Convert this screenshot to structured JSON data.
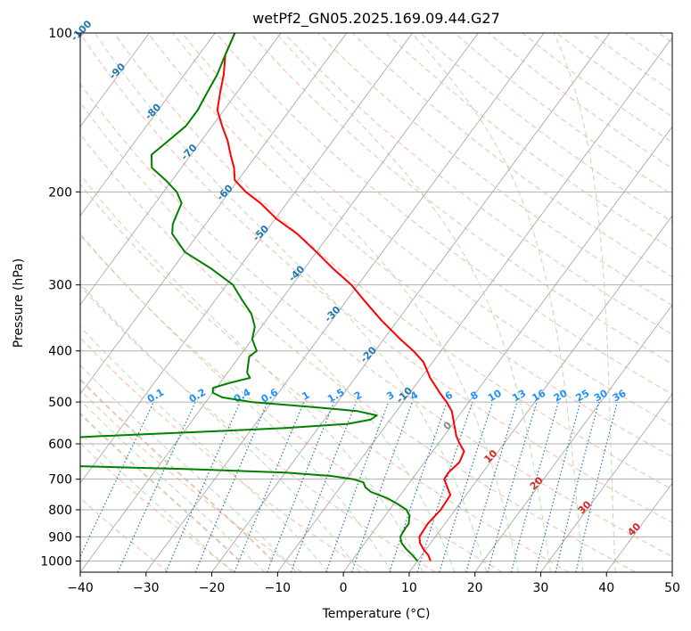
{
  "chart_data": {
    "type": "skewt",
    "title": "wetPf2_GN05.2025.169.09.44.G27",
    "xlabel": "Temperature (°C)",
    "ylabel": "Pressure (hPa)",
    "xlim": [
      -40,
      50
    ],
    "ylim": [
      1050,
      100
    ],
    "x_ticks": [
      -40,
      -30,
      -20,
      -10,
      0,
      10,
      20,
      30,
      40,
      50
    ],
    "y_ticks": [
      100,
      200,
      300,
      400,
      500,
      600,
      700,
      800,
      900,
      1000
    ],
    "grid": true,
    "colors": {
      "temperature": "#ff0000",
      "dewpoint": "#008000",
      "isotherms": "#888888",
      "dry_adiabats": "#f4a582",
      "moist_adiabats": "#a1d99b",
      "mixing_ratio": "#1f78b4",
      "dendritic": "#d2b48c"
    },
    "series": [
      {
        "name": "Temperature",
        "pressure": [
          1000,
          975,
          950,
          925,
          900,
          850,
          800,
          750,
          720,
          700,
          680,
          650,
          620,
          600,
          580,
          550,
          520,
          500,
          480,
          450,
          420,
          400,
          380,
          350,
          320,
          300,
          280,
          260,
          240,
          225,
          210,
          200,
          190,
          180,
          170,
          160,
          150,
          140,
          130,
          120,
          110,
          100
        ],
        "temperature": [
          12.0,
          11.0,
          9.6,
          8.4,
          7.6,
          7.4,
          7.8,
          7.6,
          6.0,
          4.9,
          4.8,
          5.3,
          4.8,
          3.3,
          1.9,
          0.2,
          -1.6,
          -3.4,
          -5.5,
          -8.6,
          -11.4,
          -14.2,
          -17.5,
          -22.5,
          -27.5,
          -31.0,
          -35.5,
          -40.0,
          -45.0,
          -49.8,
          -54.0,
          -57.5,
          -60.5,
          -62.0,
          -64.0,
          -66.0,
          -68.5,
          -71.0,
          -72.5,
          -74.0,
          -76.0,
          -77.0
        ]
      },
      {
        "name": "Dewpoint",
        "pressure": [
          1000,
          975,
          950,
          925,
          900,
          870,
          850,
          820,
          800,
          780,
          760,
          740,
          725,
          710,
          700,
          690,
          680,
          670,
          660,
          650,
          640,
          630,
          620,
          610,
          600,
          590,
          580,
          570,
          560,
          550,
          540,
          530,
          520,
          510,
          500,
          490,
          480,
          470,
          460,
          450,
          440,
          430,
          420,
          410,
          400,
          390,
          380,
          360,
          340,
          320,
          300,
          280,
          260,
          240,
          230,
          220,
          210,
          200,
          190,
          180,
          170,
          160,
          150,
          140,
          130,
          120,
          110,
          100
        ],
        "temperature": [
          10.0,
          8.6,
          7.0,
          5.6,
          4.7,
          4.5,
          4.5,
          3.7,
          2.6,
          0.6,
          -1.7,
          -4.8,
          -6.2,
          -7.0,
          -8.9,
          -12.7,
          -20.0,
          -35.0,
          -55.0,
          -70.0,
          -76.0,
          -79.0,
          -72.0,
          -60.0,
          -64.0,
          -63.0,
          -52.0,
          -38.0,
          -25.0,
          -16.0,
          -13.0,
          -12.5,
          -16.0,
          -24.0,
          -33.0,
          -38.0,
          -40.0,
          -40.5,
          -38.5,
          -36.0,
          -37.0,
          -37.5,
          -38.0,
          -38.5,
          -38.0,
          -39.0,
          -40.0,
          -41.0,
          -43.0,
          -46.0,
          -49.0,
          -54.0,
          -60.0,
          -64.0,
          -65.0,
          -65.5,
          -66.0,
          -68.0,
          -71.0,
          -74.5,
          -76.0,
          -75.0,
          -74.0,
          -74.0,
          -74.5,
          -75.0,
          -76.0,
          -77.0
        ]
      }
    ],
    "isotherm_labels": [
      "-100",
      "-90",
      "-80",
      "-70",
      "-60",
      "-50",
      "-40",
      "-30",
      "-20",
      "-10",
      "0",
      "10",
      "20",
      "30",
      "40"
    ],
    "mixing_ratio_labels": [
      "0.1",
      "0.2",
      "0.4",
      "0.6",
      "1",
      "1.5",
      "2",
      "3",
      "4",
      "6",
      "8",
      "10",
      "13",
      "16",
      "20",
      "25",
      "30",
      "36"
    ]
  }
}
